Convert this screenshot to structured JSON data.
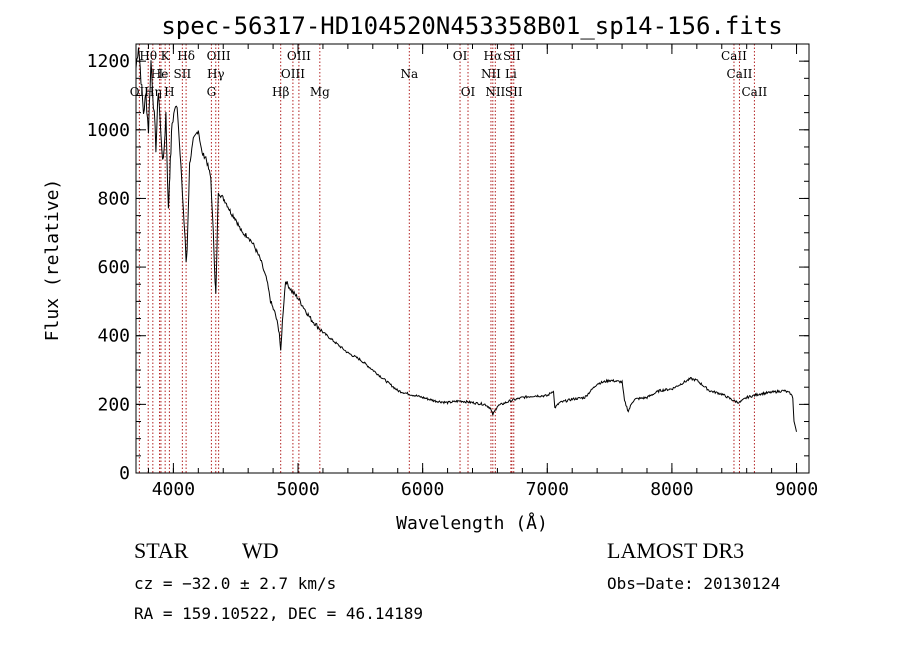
{
  "chart_data": {
    "type": "line",
    "title": "spec-56317-HD104520N453358B01_sp14-156.fits",
    "xlabel": "Wavelength (Å)",
    "ylabel": "Flux (relative)",
    "xlim": [
      3700,
      9100
    ],
    "ylim": [
      0,
      1250
    ],
    "x_ticks": [
      4000,
      5000,
      6000,
      7000,
      8000,
      9000
    ],
    "y_ticks": [
      0,
      200,
      400,
      600,
      800,
      1000,
      1200
    ],
    "series": [
      {
        "name": "flux",
        "color": "#000000",
        "x": [
          3700,
          3720,
          3740,
          3760,
          3780,
          3800,
          3820,
          3840,
          3860,
          3880,
          3900,
          3920,
          3940,
          3960,
          3968,
          3975,
          3990,
          4010,
          4030,
          4060,
          4080,
          4095,
          4102,
          4110,
          4130,
          4160,
          4200,
          4230,
          4260,
          4300,
          4320,
          4335,
          4340,
          4345,
          4360,
          4380,
          4420,
          4460,
          4500,
          4550,
          4600,
          4650,
          4700,
          4750,
          4780,
          4820,
          4850,
          4861,
          4870,
          4880,
          4900,
          4950,
          5000,
          5050,
          5100,
          5150,
          5200,
          5300,
          5400,
          5500,
          5600,
          5700,
          5800,
          5890,
          5950,
          6000,
          6100,
          6200,
          6300,
          6400,
          6500,
          6540,
          6563,
          6600,
          6700,
          6800,
          6900,
          7000,
          7050,
          7060,
          7100,
          7200,
          7300,
          7400,
          7500,
          7600,
          7620,
          7650,
          7680,
          7700,
          7800,
          7900,
          8000,
          8100,
          8150,
          8200,
          8300,
          8400,
          8500,
          8542,
          8600,
          8700,
          8800,
          8900,
          8950,
          8970,
          8980,
          9000
        ],
        "y": [
          1180,
          1250,
          1150,
          1050,
          1100,
          1000,
          1200,
          1080,
          950,
          1120,
          980,
          900,
          1050,
          760,
          850,
          900,
          1020,
          1060,
          1070,
          900,
          760,
          680,
          610,
          650,
          900,
          970,
          1000,
          930,
          920,
          860,
          700,
          560,
          520,
          580,
          820,
          810,
          790,
          760,
          740,
          700,
          690,
          660,
          620,
          560,
          500,
          460,
          410,
          350,
          410,
          470,
          560,
          530,
          510,
          480,
          450,
          430,
          410,
          380,
          350,
          330,
          300,
          270,
          240,
          230,
          225,
          220,
          210,
          205,
          210,
          205,
          200,
          190,
          170,
          195,
          210,
          220,
          225,
          225,
          240,
          190,
          205,
          215,
          220,
          260,
          270,
          265,
          210,
          180,
          205,
          215,
          220,
          240,
          245,
          265,
          275,
          270,
          240,
          230,
          210,
          205,
          220,
          230,
          235,
          240,
          232,
          220,
          150,
          120
        ]
      }
    ],
    "lines": [
      {
        "label": "Hθ",
        "x": 3798,
        "row": 0
      },
      {
        "label": "K",
        "x": 3934,
        "row": 0
      },
      {
        "label": "Hδ",
        "x": 4102,
        "row": 0
      },
      {
        "label": "OIII",
        "x": 4363,
        "row": 0
      },
      {
        "label": "OIII",
        "x": 5007,
        "row": 0
      },
      {
        "label": "OI",
        "x": 6300,
        "row": 0
      },
      {
        "label": "Hα",
        "x": 6563,
        "row": 0
      },
      {
        "label": "SII",
        "x": 6716,
        "row": 0
      },
      {
        "label": "CaII",
        "x": 8498,
        "row": 0
      },
      {
        "label": "He",
        "x": 3889,
        "row": 1
      },
      {
        "label": "I",
        "x": 3900,
        "row": 1
      },
      {
        "label": "SII",
        "x": 4072,
        "row": 1
      },
      {
        "label": "Hγ",
        "x": 4340,
        "row": 1
      },
      {
        "label": "OIII",
        "x": 4959,
        "row": 1
      },
      {
        "label": "Na",
        "x": 5893,
        "row": 1
      },
      {
        "label": "NII",
        "x": 6548,
        "row": 1
      },
      {
        "label": "Li",
        "x": 6708,
        "row": 1
      },
      {
        "label": "CaII",
        "x": 8542,
        "row": 1
      },
      {
        "label": "OII",
        "x": 3727,
        "row": 2
      },
      {
        "label": "Hη",
        "x": 3835,
        "row": 2
      },
      {
        "label": "H",
        "x": 3968,
        "row": 2
      },
      {
        "label": "G",
        "x": 4305,
        "row": 2
      },
      {
        "label": "Hβ",
        "x": 4861,
        "row": 2
      },
      {
        "label": "Mg",
        "x": 5175,
        "row": 2
      },
      {
        "label": "OI",
        "x": 6364,
        "row": 2
      },
      {
        "label": "NII",
        "x": 6583,
        "row": 2
      },
      {
        "label": "SII",
        "x": 6731,
        "row": 2
      },
      {
        "label": "CaII",
        "x": 8662,
        "row": 2
      }
    ]
  },
  "info": {
    "object_class": "STAR",
    "subclass": "WD",
    "survey": "LAMOST DR3",
    "cz": "cz = −32.0 ± 2.7 km/s",
    "obs_date": "Obs−Date: 20130124",
    "coords": "RA = 159.10522, DEC =  46.14189"
  }
}
